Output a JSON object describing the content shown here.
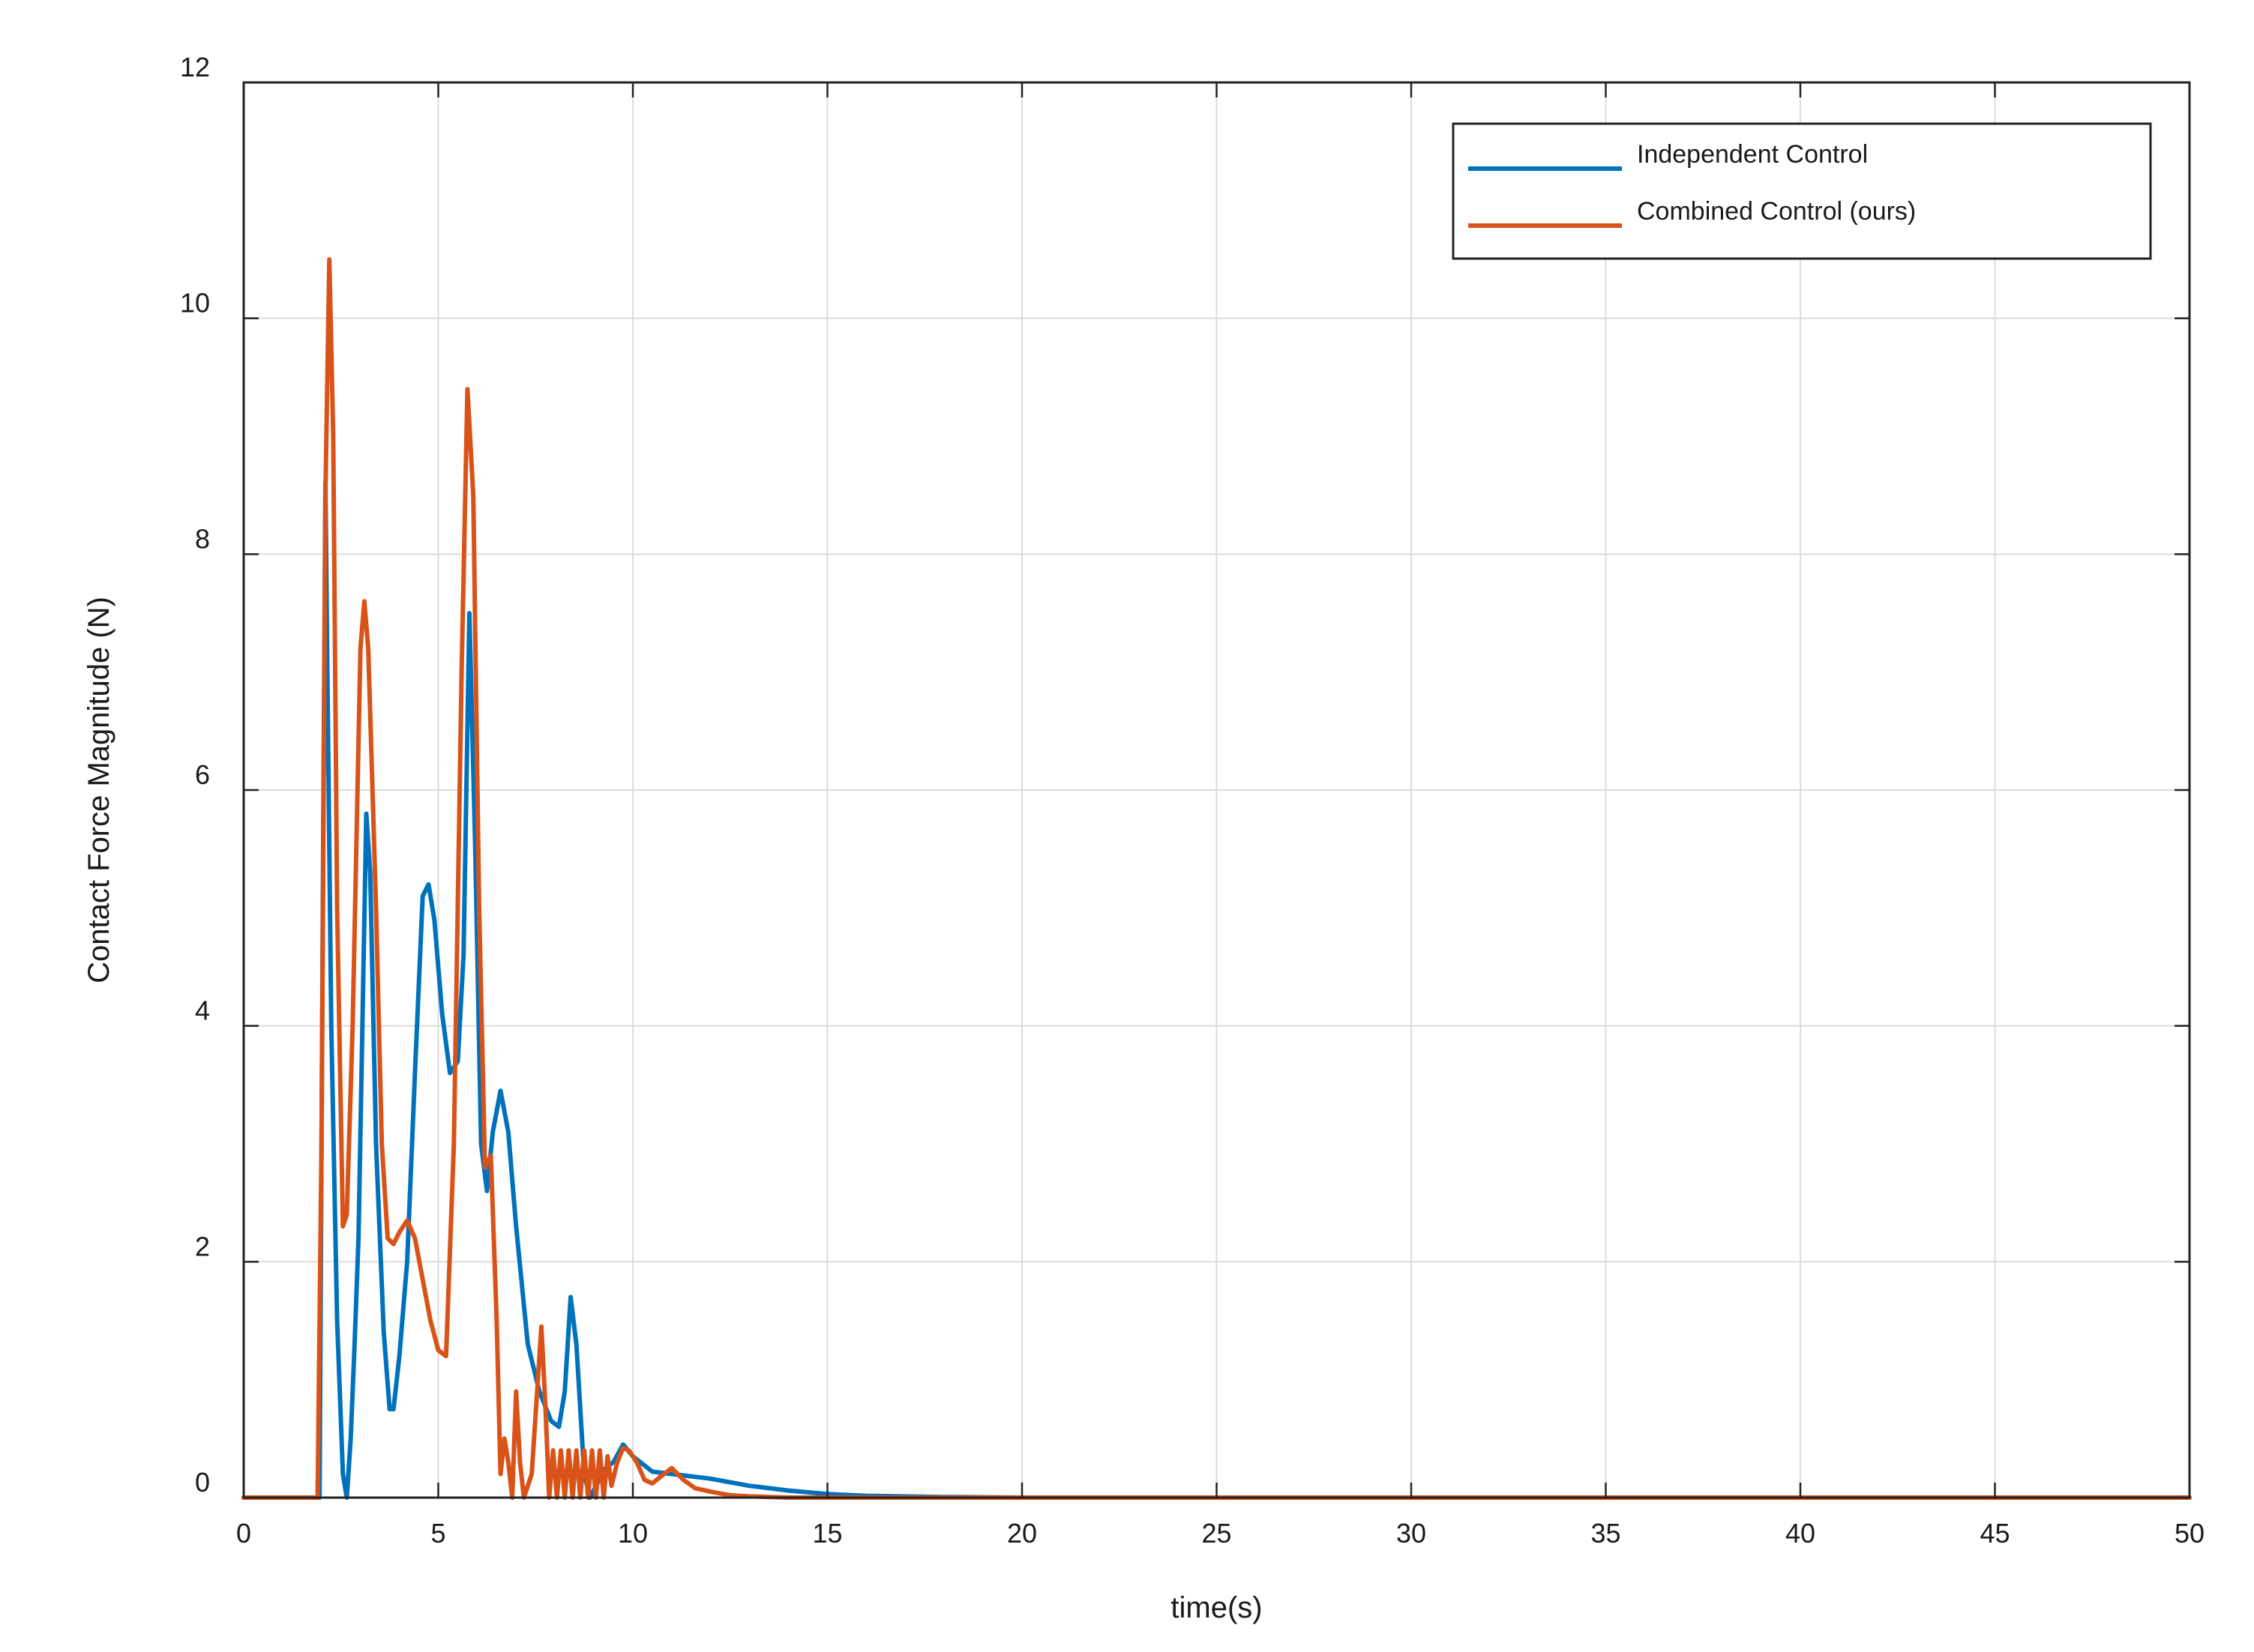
{
  "chart_data": {
    "type": "line",
    "title": "",
    "xlabel": "time(s)",
    "ylabel": "Contact Force Magnitude (N)",
    "xlim": [
      0,
      50
    ],
    "ylim": [
      0,
      12
    ],
    "xticks": [
      0,
      5,
      10,
      15,
      20,
      25,
      30,
      35,
      40,
      45,
      50
    ],
    "yticks": [
      0,
      2,
      4,
      6,
      8,
      10,
      12
    ],
    "xtick_labels": [
      "0",
      "5",
      "10",
      "15",
      "20",
      "25",
      "30",
      "35",
      "40",
      "45",
      "50"
    ],
    "ytick_labels": [
      "0",
      "2",
      "4",
      "6",
      "8",
      "10",
      "12"
    ],
    "grid": true,
    "legend_position": "top-right",
    "series": [
      {
        "name": "Independent Control",
        "color": "#0072BD",
        "points": [
          [
            0,
            0
          ],
          [
            1.8,
            0
          ],
          [
            1.95,
            0
          ],
          [
            2.05,
            6.0
          ],
          [
            2.1,
            8.6
          ],
          [
            2.15,
            7.0
          ],
          [
            2.25,
            4.0
          ],
          [
            2.4,
            1.5
          ],
          [
            2.55,
            0.2
          ],
          [
            2.65,
            0
          ],
          [
            2.75,
            0.5
          ],
          [
            2.85,
            1.3
          ],
          [
            2.95,
            2.2
          ],
          [
            3.05,
            4.0
          ],
          [
            3.15,
            5.8
          ],
          [
            3.25,
            5.3
          ],
          [
            3.4,
            3.0
          ],
          [
            3.6,
            1.4
          ],
          [
            3.75,
            0.75
          ],
          [
            3.85,
            0.75
          ],
          [
            4.0,
            1.2
          ],
          [
            4.2,
            2.0
          ],
          [
            4.4,
            3.6
          ],
          [
            4.6,
            5.1
          ],
          [
            4.75,
            5.2
          ],
          [
            4.9,
            4.9
          ],
          [
            5.1,
            4.1
          ],
          [
            5.3,
            3.6
          ],
          [
            5.5,
            3.7
          ],
          [
            5.65,
            4.6
          ],
          [
            5.8,
            7.5
          ],
          [
            5.95,
            5.5
          ],
          [
            6.1,
            3.0
          ],
          [
            6.25,
            2.6
          ],
          [
            6.4,
            3.1
          ],
          [
            6.6,
            3.45
          ],
          [
            6.8,
            3.1
          ],
          [
            7.0,
            2.3
          ],
          [
            7.3,
            1.3
          ],
          [
            7.6,
            0.9
          ],
          [
            7.9,
            0.65
          ],
          [
            8.1,
            0.6
          ],
          [
            8.25,
            0.9
          ],
          [
            8.4,
            1.7
          ],
          [
            8.55,
            1.3
          ],
          [
            8.75,
            0.2
          ],
          [
            8.9,
            0
          ],
          [
            9.05,
            0.1
          ],
          [
            9.3,
            0.25
          ],
          [
            9.5,
            0.3
          ],
          [
            9.75,
            0.45
          ],
          [
            10.0,
            0.35
          ],
          [
            10.5,
            0.22
          ],
          [
            11.0,
            0.2
          ],
          [
            12.0,
            0.16
          ],
          [
            13.0,
            0.1
          ],
          [
            14.0,
            0.06
          ],
          [
            15.0,
            0.03
          ],
          [
            16.0,
            0.015
          ],
          [
            18.0,
            0.005
          ],
          [
            20.0,
            0
          ],
          [
            50,
            0
          ]
        ]
      },
      {
        "name": "Combined Control (ours)",
        "color": "#D95319",
        "points": [
          [
            0,
            0
          ],
          [
            1.8,
            0
          ],
          [
            1.9,
            0
          ],
          [
            2.0,
            3.0
          ],
          [
            2.1,
            8.5
          ],
          [
            2.2,
            10.5
          ],
          [
            2.3,
            9.0
          ],
          [
            2.4,
            5.0
          ],
          [
            2.55,
            2.3
          ],
          [
            2.65,
            2.4
          ],
          [
            2.8,
            4.0
          ],
          [
            3.0,
            7.2
          ],
          [
            3.1,
            7.6
          ],
          [
            3.2,
            7.2
          ],
          [
            3.4,
            5.0
          ],
          [
            3.55,
            3.0
          ],
          [
            3.7,
            2.2
          ],
          [
            3.85,
            2.15
          ],
          [
            4.0,
            2.25
          ],
          [
            4.2,
            2.35
          ],
          [
            4.4,
            2.2
          ],
          [
            4.6,
            1.85
          ],
          [
            4.8,
            1.5
          ],
          [
            5.0,
            1.25
          ],
          [
            5.2,
            1.2
          ],
          [
            5.4,
            3.0
          ],
          [
            5.6,
            7.0
          ],
          [
            5.75,
            9.4
          ],
          [
            5.9,
            8.5
          ],
          [
            6.05,
            5.0
          ],
          [
            6.2,
            2.8
          ],
          [
            6.35,
            2.9
          ],
          [
            6.5,
            1.5
          ],
          [
            6.6,
            0.2
          ],
          [
            6.7,
            0.5
          ],
          [
            6.8,
            0.3
          ],
          [
            6.9,
            0
          ],
          [
            7.0,
            0.9
          ],
          [
            7.1,
            0.3
          ],
          [
            7.2,
            0
          ],
          [
            7.4,
            0.2
          ],
          [
            7.5,
            0.7
          ],
          [
            7.65,
            1.45
          ],
          [
            7.75,
            0.8
          ],
          [
            7.85,
            0
          ],
          [
            7.95,
            0.4
          ],
          [
            8.05,
            0
          ],
          [
            8.15,
            0.4
          ],
          [
            8.25,
            0
          ],
          [
            8.35,
            0.4
          ],
          [
            8.45,
            0
          ],
          [
            8.55,
            0.4
          ],
          [
            8.65,
            0
          ],
          [
            8.75,
            0.4
          ],
          [
            8.85,
            0
          ],
          [
            8.95,
            0.4
          ],
          [
            9.05,
            0
          ],
          [
            9.15,
            0.4
          ],
          [
            9.25,
            0
          ],
          [
            9.35,
            0.35
          ],
          [
            9.45,
            0.1
          ],
          [
            9.6,
            0.3
          ],
          [
            9.75,
            0.42
          ],
          [
            9.9,
            0.4
          ],
          [
            10.1,
            0.3
          ],
          [
            10.3,
            0.15
          ],
          [
            10.5,
            0.12
          ],
          [
            10.8,
            0.2
          ],
          [
            11.0,
            0.25
          ],
          [
            11.3,
            0.15
          ],
          [
            11.6,
            0.08
          ],
          [
            12.0,
            0.05
          ],
          [
            12.5,
            0.02
          ],
          [
            13.0,
            0.01
          ],
          [
            14.0,
            0
          ],
          [
            50,
            0
          ]
        ]
      }
    ]
  }
}
